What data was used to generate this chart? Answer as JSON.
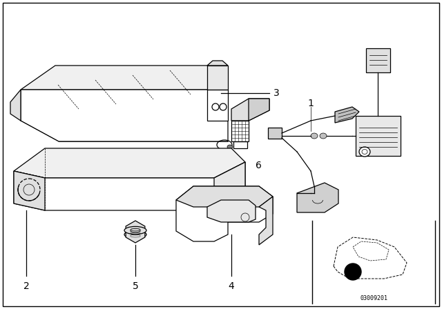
{
  "background_color": "#ffffff",
  "border_color": "#000000",
  "watermark": "03009201",
  "fig_width": 6.4,
  "fig_height": 4.48,
  "dpi": 100,
  "line_color": "#000000",
  "label_fontsize": 10,
  "thumbnail_border_color": "#000000"
}
